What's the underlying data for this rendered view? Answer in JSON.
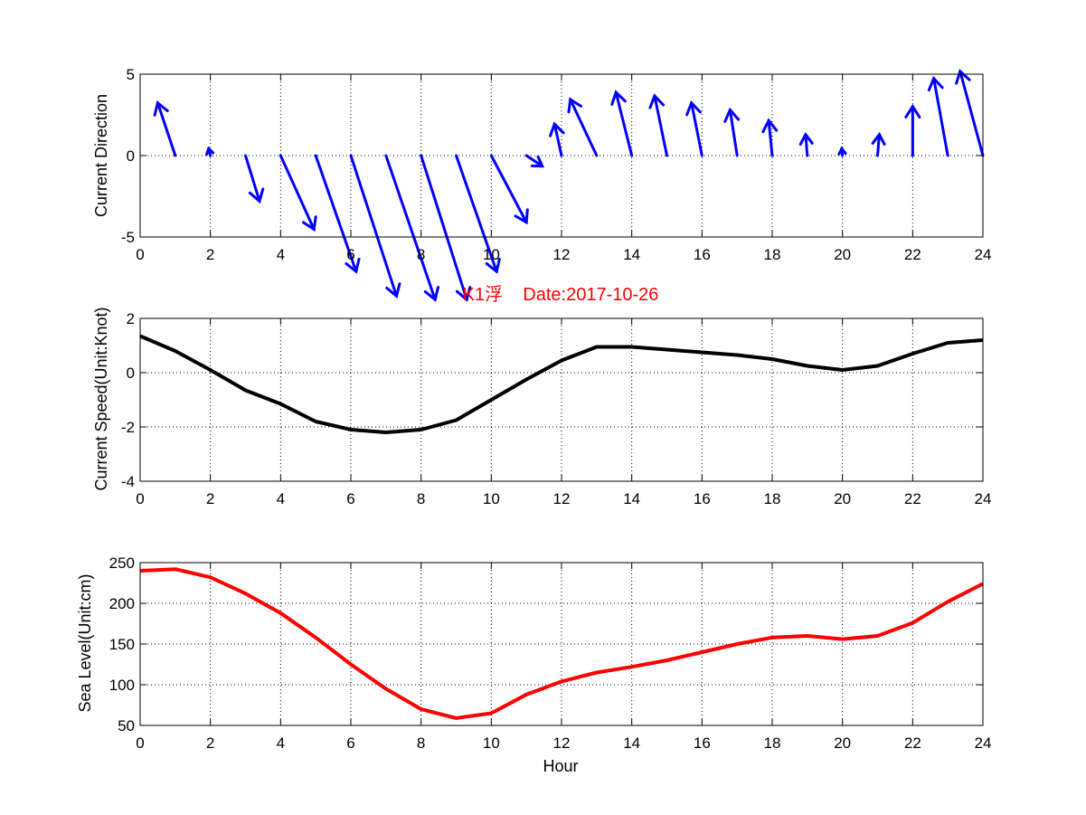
{
  "chart_data": [
    {
      "type": "quiver",
      "ylabel": "Current Direction",
      "xlim": [
        0,
        24
      ],
      "ylim": [
        -5,
        5
      ],
      "xticks": [
        0,
        2,
        4,
        6,
        8,
        10,
        12,
        14,
        16,
        18,
        20,
        22,
        24
      ],
      "yticks": [
        -5,
        0,
        5
      ],
      "grid": true,
      "color": "#0000ff",
      "x": [
        1,
        2,
        3,
        4,
        5,
        6,
        7,
        8,
        9,
        10,
        11,
        12,
        13,
        14,
        15,
        16,
        17,
        18,
        19,
        20,
        21,
        22,
        23,
        24
      ],
      "u": [
        -0.5,
        -0.05,
        0.4,
        0.95,
        1.15,
        1.3,
        1.4,
        1.3,
        1.15,
        1.0,
        0.45,
        -0.2,
        -0.75,
        -0.45,
        -0.35,
        -0.3,
        -0.2,
        -0.1,
        -0.05,
        -0.02,
        0.05,
        0.0,
        -0.4,
        -0.65
      ],
      "v": [
        1.5,
        0.2,
        -1.3,
        -2.1,
        -3.3,
        -4.0,
        -4.1,
        -4.1,
        -3.3,
        -1.9,
        -0.3,
        0.9,
        1.6,
        1.8,
        1.7,
        1.5,
        1.3,
        1.0,
        0.6,
        0.2,
        0.6,
        1.4,
        2.2,
        2.4
      ]
    },
    {
      "type": "line",
      "title": "K1浮    Date:2017-10-26",
      "ylabel": "Current Speed(Unit:Knot)",
      "xlim": [
        0,
        24
      ],
      "ylim": [
        -4,
        2
      ],
      "xticks": [
        0,
        2,
        4,
        6,
        8,
        10,
        12,
        14,
        16,
        18,
        20,
        22,
        24
      ],
      "yticks": [
        -4,
        -2,
        0,
        2
      ],
      "grid": true,
      "color": "#000000",
      "x": [
        0,
        1,
        2,
        3,
        4,
        5,
        6,
        7,
        8,
        9,
        10,
        11,
        12,
        13,
        14,
        15,
        16,
        17,
        18,
        19,
        20,
        21,
        22,
        23,
        24
      ],
      "y": [
        1.35,
        0.8,
        0.1,
        -0.65,
        -1.15,
        -1.8,
        -2.1,
        -2.2,
        -2.1,
        -1.75,
        -1.0,
        -0.25,
        0.45,
        0.95,
        0.95,
        0.85,
        0.75,
        0.65,
        0.5,
        0.25,
        0.1,
        0.25,
        0.7,
        1.1,
        1.2
      ]
    },
    {
      "type": "line",
      "xlabel": "Hour",
      "ylabel": "Sea Level(Unit:cm)",
      "xlim": [
        0,
        24
      ],
      "ylim": [
        50,
        250
      ],
      "xticks": [
        0,
        2,
        4,
        6,
        8,
        10,
        12,
        14,
        16,
        18,
        20,
        22,
        24
      ],
      "yticks": [
        50,
        100,
        150,
        200,
        250
      ],
      "grid": true,
      "color": "#ff0000",
      "x": [
        0,
        1,
        2,
        3,
        4,
        5,
        6,
        7,
        8,
        9,
        10,
        11,
        12,
        13,
        14,
        15,
        16,
        17,
        18,
        19,
        20,
        21,
        22,
        23,
        24
      ],
      "y": [
        240,
        242,
        232,
        212,
        188,
        158,
        125,
        95,
        70,
        59,
        65,
        88,
        104,
        115,
        122,
        130,
        140,
        150,
        158,
        160,
        156,
        160,
        176,
        202,
        224
      ]
    }
  ]
}
